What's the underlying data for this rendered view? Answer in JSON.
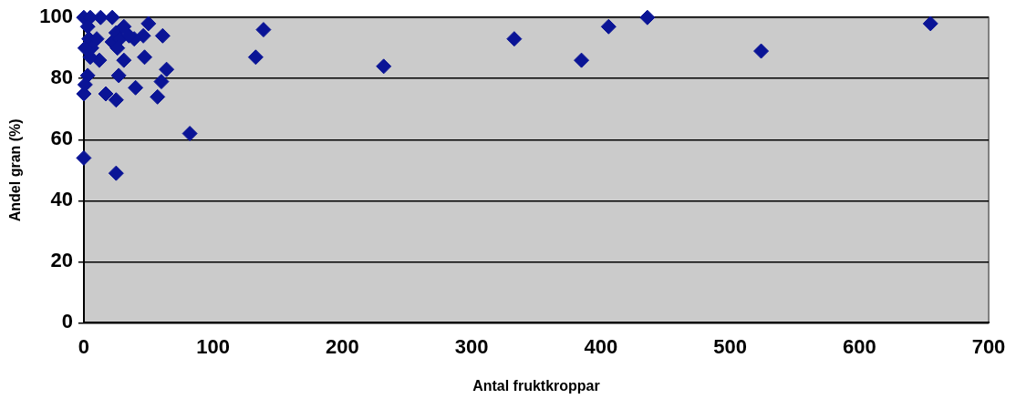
{
  "chart_data": {
    "type": "scatter",
    "xlabel": "Antal fruktkroppar",
    "ylabel": "Andel gran (%)",
    "xlim": [
      0,
      700
    ],
    "xticks": [
      0,
      100,
      200,
      300,
      400,
      500,
      600,
      700
    ],
    "ylim": [
      0,
      100
    ],
    "yticks": [
      0,
      20,
      40,
      60,
      80,
      100
    ],
    "grid": "y",
    "legend": false,
    "marker": "diamond",
    "series": [
      {
        "color": "#0a1496",
        "x": [
          0,
          25,
          82,
          0,
          17,
          25,
          40,
          57,
          60,
          64,
          27,
          31,
          47,
          12,
          3,
          5,
          1,
          61,
          50,
          46,
          39,
          22,
          25,
          28,
          35,
          26,
          31,
          13,
          22,
          0,
          5,
          3,
          4,
          10,
          6,
          1,
          139,
          133,
          232,
          333,
          385,
          406,
          436,
          524,
          655
        ],
        "values": [
          54,
          49,
          62,
          75,
          75,
          73,
          77,
          74,
          79,
          83,
          81,
          86,
          87,
          86,
          81,
          87,
          78,
          94,
          98,
          94,
          93,
          92,
          95,
          93,
          94,
          90,
          97,
          100,
          100,
          100,
          100,
          97,
          93,
          93,
          90,
          90,
          96,
          87,
          84,
          93,
          86,
          97,
          100,
          89,
          98
        ]
      }
    ]
  }
}
